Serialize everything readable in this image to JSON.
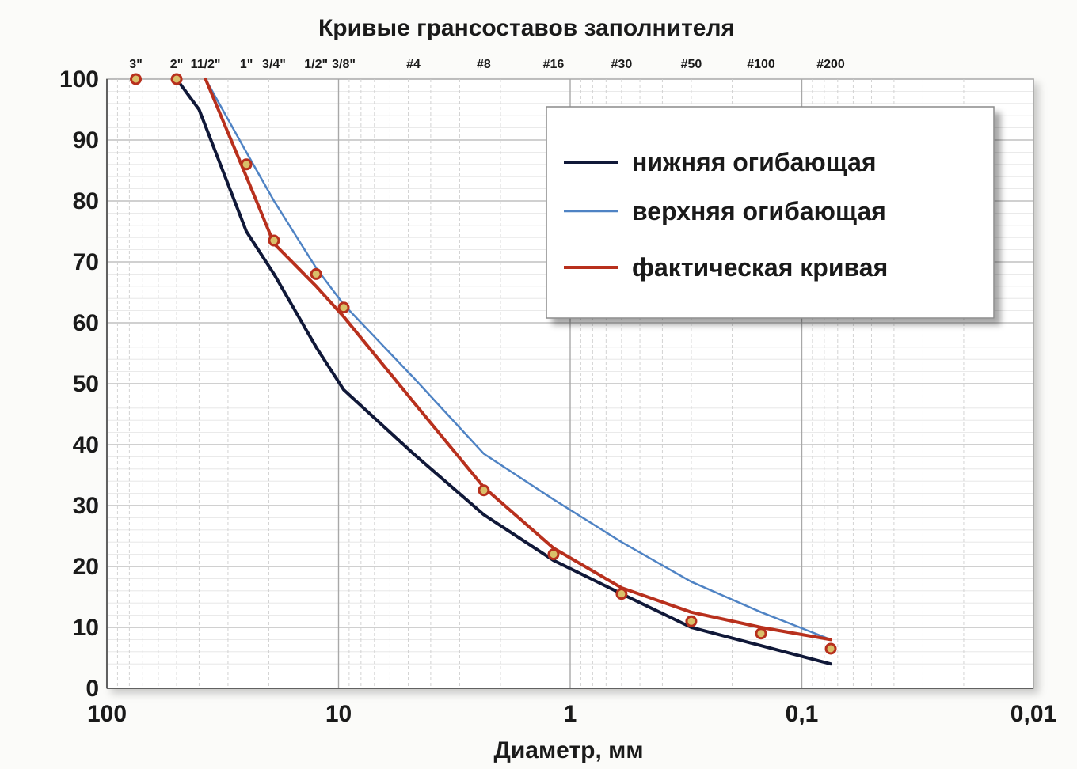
{
  "chart_data": {
    "type": "line",
    "title": "Кривые грансоставов заполнителя",
    "xlabel": "Диаметр, мм",
    "ylabel": "",
    "x_scale": "log",
    "x_reversed": true,
    "xlim": [
      100,
      0.01
    ],
    "ylim": [
      0,
      100
    ],
    "grid": true,
    "legend_position": "top-right",
    "x_ticks": [
      {
        "value": 100,
        "label": "100"
      },
      {
        "value": 10,
        "label": "10"
      },
      {
        "value": 1,
        "label": "1"
      },
      {
        "value": 0.1,
        "label": "0,1"
      },
      {
        "value": 0.01,
        "label": "0,01"
      }
    ],
    "y_ticks": [
      {
        "value": 100,
        "label": "100"
      },
      {
        "value": 90,
        "label": "90"
      },
      {
        "value": 80,
        "label": "80"
      },
      {
        "value": 70,
        "label": "70"
      },
      {
        "value": 60,
        "label": "60"
      },
      {
        "value": 50,
        "label": "50"
      },
      {
        "value": 40,
        "label": "40"
      },
      {
        "value": 30,
        "label": "30"
      },
      {
        "value": 20,
        "label": "20"
      },
      {
        "value": 10,
        "label": "10"
      },
      {
        "value": 0,
        "label": "0"
      }
    ],
    "sieve_labels": [
      {
        "value": 75,
        "label": "3\""
      },
      {
        "value": 50,
        "label": "2\""
      },
      {
        "value": 37.5,
        "label": "11/2\""
      },
      {
        "value": 25,
        "label": "1\""
      },
      {
        "value": 19,
        "label": "3/4\""
      },
      {
        "value": 12.5,
        "label": "1/2\""
      },
      {
        "value": 9.5,
        "label": "3/8\""
      },
      {
        "value": 4.75,
        "label": "#4"
      },
      {
        "value": 2.36,
        "label": "#8"
      },
      {
        "value": 1.18,
        "label": "#16"
      },
      {
        "value": 0.6,
        "label": "#30"
      },
      {
        "value": 0.3,
        "label": "#50"
      },
      {
        "value": 0.15,
        "label": "#100"
      },
      {
        "value": 0.075,
        "label": "#200"
      }
    ],
    "series": [
      {
        "name": "нижняя огибающая",
        "color": "#101838",
        "stroke_width": 4,
        "x": [
          50,
          40,
          25,
          19,
          12.5,
          9.5,
          4.75,
          2.36,
          1.18,
          0.6,
          0.3,
          0.15,
          0.075
        ],
        "y": [
          100,
          95,
          75,
          68,
          56,
          49,
          38.5,
          28.5,
          21,
          15.5,
          10,
          7,
          4
        ]
      },
      {
        "name": "верхняя огибающая",
        "color": "#4f83c4",
        "stroke_width": 2.5,
        "x": [
          37.5,
          25,
          19,
          12.5,
          9.5,
          4.75,
          2.36,
          1.18,
          0.6,
          0.3,
          0.15,
          0.075
        ],
        "y": [
          100,
          88,
          80,
          69,
          63,
          51,
          38.5,
          31,
          24,
          17.5,
          12.5,
          8
        ]
      },
      {
        "name": "фактическая кривая",
        "color": "#b8301d",
        "stroke_width": 4,
        "x": [
          37.5,
          25,
          19,
          12.5,
          9.5,
          4.75,
          2.36,
          1.18,
          0.6,
          0.3,
          0.15,
          0.075
        ],
        "y": [
          100,
          84,
          73,
          66,
          61,
          47,
          33,
          23,
          16.5,
          12.5,
          10,
          8
        ]
      },
      {
        "name": "",
        "type": "scatter",
        "color": "#b8301d",
        "x": [
          75,
          50,
          25,
          19,
          12.5,
          9.5,
          2.36,
          1.18,
          0.6,
          0.3,
          0.15,
          0.075
        ],
        "y": [
          100,
          100,
          86,
          73.5,
          68,
          62.5,
          32.5,
          22,
          15.5,
          11,
          9,
          6.5
        ]
      }
    ]
  }
}
